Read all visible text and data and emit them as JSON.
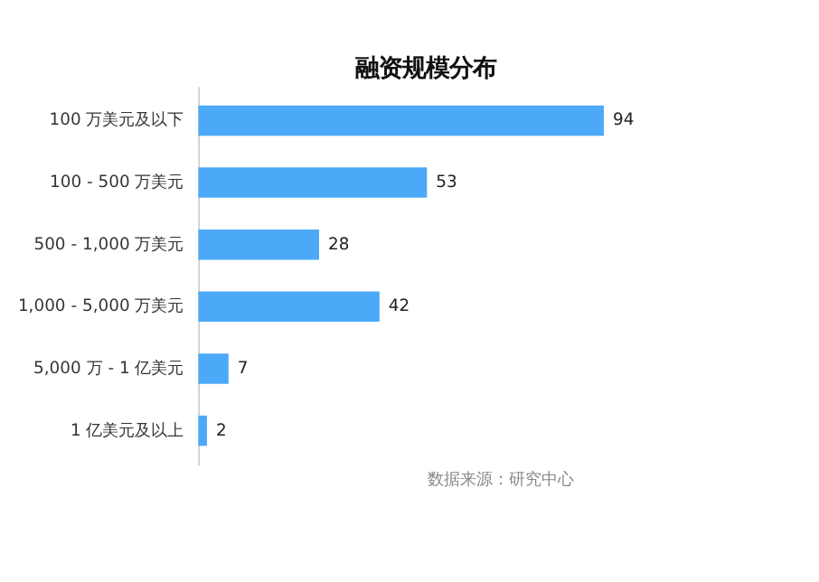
{
  "chart_data": {
    "type": "bar",
    "orientation": "horizontal",
    "title": "融资规模分布",
    "categories": [
      "100 万美元及以下",
      "100 - 500 万美元",
      "500 - 1,000 万美元",
      "1,000 - 5,000 万美元",
      "5,000 万 - 1 亿美元",
      "1 亿美元及以上"
    ],
    "values": [
      94,
      53,
      28,
      42,
      7,
      2
    ],
    "color": "#4ba9f7",
    "data_labels": true,
    "grid": false,
    "annotations": [
      "数据来源：研究中心"
    ]
  }
}
